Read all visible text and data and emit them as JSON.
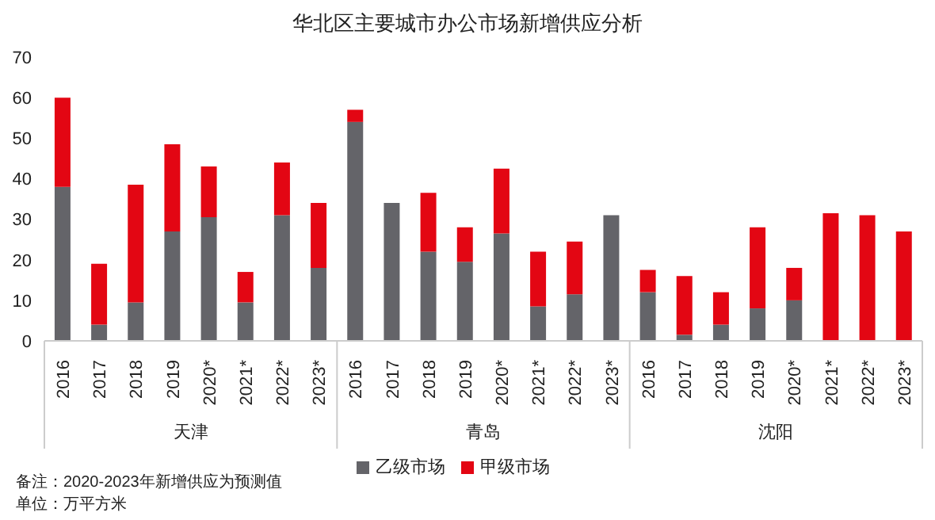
{
  "chart_data": {
    "type": "bar",
    "title": "华北区主要城市办公市场新增供应分析",
    "stacked": true,
    "categories": [
      "2016",
      "2017",
      "2018",
      "2019",
      "2020*",
      "2021*",
      "2022*",
      "2023*",
      "2016",
      "2017",
      "2018",
      "2019",
      "2020*",
      "2021*",
      "2022*",
      "2023*",
      "2016",
      "2017",
      "2018",
      "2019",
      "2020*",
      "2021*",
      "2022*",
      "2023*"
    ],
    "series": [
      {
        "name": "乙级市场",
        "color": "#646469",
        "values": [
          38,
          4,
          9.5,
          27,
          30.5,
          9.5,
          31,
          18,
          54,
          34,
          22,
          19.5,
          26.5,
          8.5,
          11.5,
          31,
          12,
          1.5,
          4,
          8,
          10,
          0,
          0,
          0
        ]
      },
      {
        "name": "甲级市场",
        "color": "#e30613",
        "values": [
          22,
          15,
          29,
          21.5,
          12.5,
          7.5,
          13,
          16,
          3,
          0,
          14.5,
          8.5,
          16,
          13.5,
          13,
          0,
          5.5,
          14.5,
          8,
          20,
          8,
          31.5,
          31,
          27
        ]
      }
    ],
    "ylim": [
      0,
      70
    ],
    "yticks": [
      0,
      10,
      20,
      30,
      40,
      50,
      60,
      70
    ],
    "legend": "bottom",
    "annotations": [
      "天津",
      "青岛",
      "沈阳",
      "备注：2020-2023年新增供应为预测值",
      "单位：万平方米"
    ]
  }
}
